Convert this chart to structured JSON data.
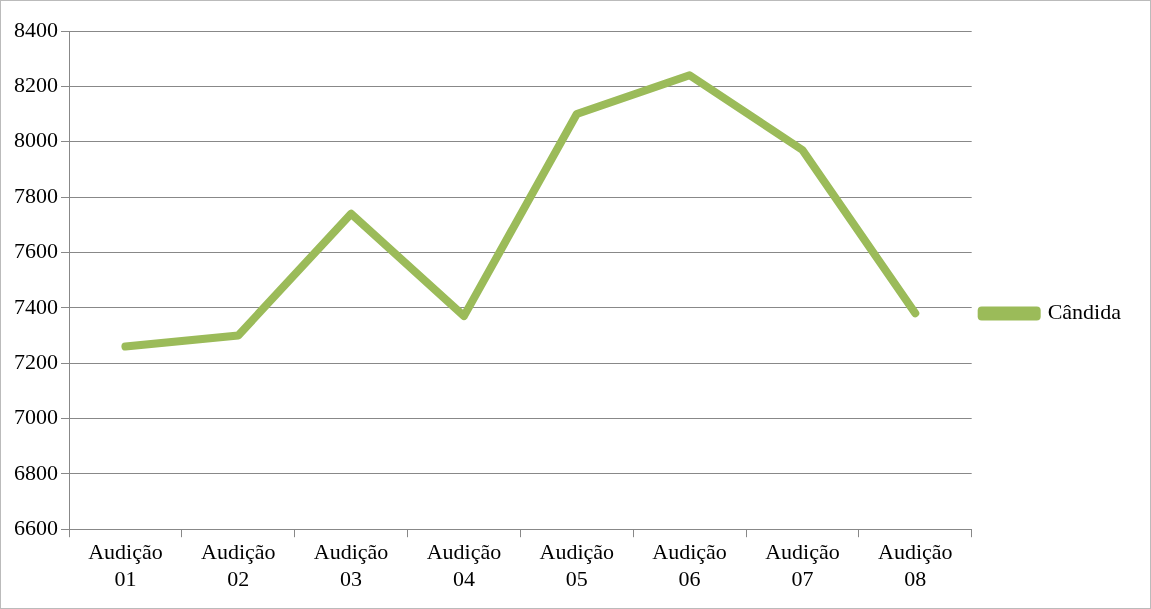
{
  "chart_data": {
    "type": "line",
    "categories": [
      "Audição 01",
      "Audição 02",
      "Audição 03",
      "Audição 04",
      "Audição 05",
      "Audição 06",
      "Audição 07",
      "Audição 08"
    ],
    "series": [
      {
        "name": "Cândida",
        "color": "#9bbb59",
        "values": [
          7260,
          7300,
          7740,
          7370,
          8100,
          8240,
          7970,
          7380
        ]
      }
    ],
    "ylim": [
      6600,
      8400
    ],
    "yticks": [
      6600,
      6800,
      7000,
      7200,
      7400,
      7600,
      7800,
      8000,
      8200,
      8400
    ],
    "grid": "y",
    "legend": "right",
    "marker": "none",
    "line_style": "solid"
  }
}
